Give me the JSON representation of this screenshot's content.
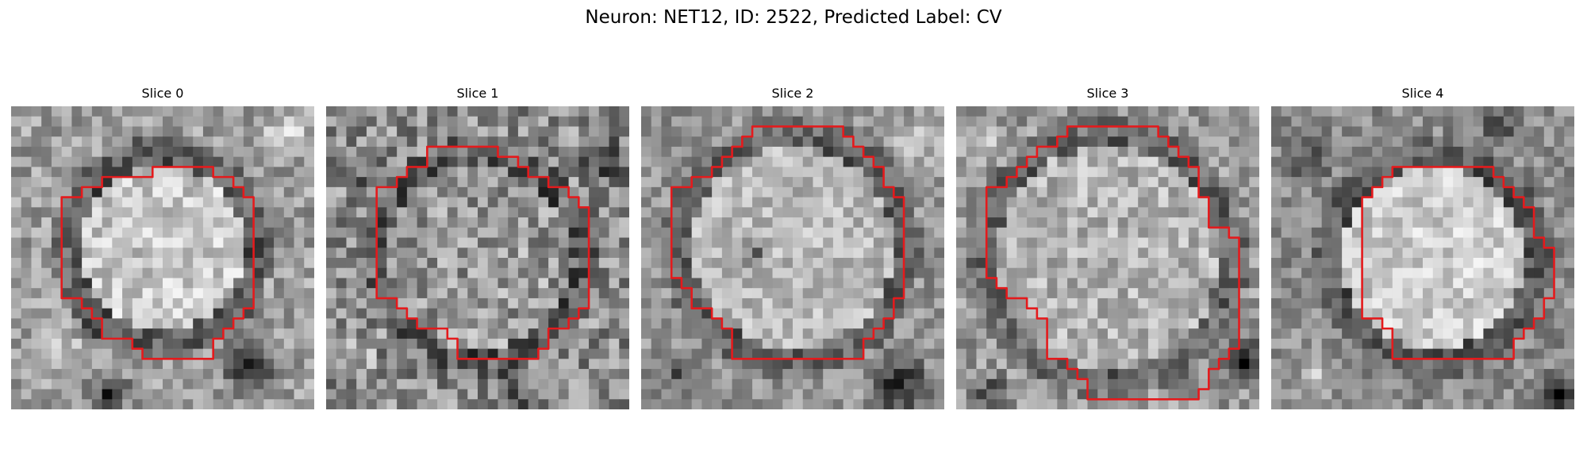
{
  "figure": {
    "title": "Neuron: NET12, ID: 2522, Predicted Label: CV",
    "contour_color": "#e41a1c"
  },
  "panels": [
    {
      "title": "Slice 0",
      "grid_size": 30,
      "image": {
        "seed": 11,
        "blob_center": [
          15,
          14
        ],
        "blob_radius": 9,
        "blob_brightness": 0.78,
        "ring_darkness": 0.3,
        "background_level": 0.62,
        "noise": 0.18,
        "dark_regions": [
          [
            8,
            21,
            2,
            0.25
          ],
          [
            23,
            25,
            4,
            0.22
          ],
          [
            9,
            28,
            3,
            0.2
          ]
        ],
        "bright_regions": [
          [
            27,
            2,
            3,
            0.88
          ],
          [
            4,
            24,
            3,
            0.82
          ]
        ]
      },
      "mask_rows": [
        [
          6,
          14,
          20
        ],
        [
          7,
          9,
          22
        ],
        [
          8,
          7,
          23
        ],
        [
          9,
          5,
          24
        ],
        [
          10,
          5,
          24
        ],
        [
          11,
          5,
          24
        ],
        [
          12,
          5,
          24
        ],
        [
          13,
          5,
          24
        ],
        [
          14,
          5,
          24
        ],
        [
          15,
          5,
          24
        ],
        [
          16,
          5,
          24
        ],
        [
          17,
          5,
          24
        ],
        [
          18,
          5,
          24
        ],
        [
          19,
          7,
          24
        ],
        [
          20,
          8,
          23
        ],
        [
          21,
          9,
          22
        ],
        [
          22,
          9,
          21
        ],
        [
          23,
          12,
          20
        ],
        [
          24,
          13,
          20
        ]
      ]
    },
    {
      "title": "Slice 1",
      "grid_size": 30,
      "image": {
        "seed": 23,
        "blob_center": [
          15,
          15
        ],
        "blob_radius": 10,
        "blob_brightness": 0.6,
        "ring_darkness": 0.32,
        "background_level": 0.55,
        "noise": 0.24,
        "dark_regions": [
          [
            27,
            5,
            3,
            0.25
          ],
          [
            4,
            6,
            3,
            0.3
          ],
          [
            18,
            28,
            3,
            0.3
          ]
        ],
        "bright_regions": [
          [
            2,
            24,
            3,
            0.78
          ]
        ]
      },
      "mask_rows": [
        [
          4,
          10,
          17
        ],
        [
          5,
          10,
          19
        ],
        [
          6,
          8,
          20
        ],
        [
          7,
          7,
          22
        ],
        [
          8,
          5,
          24
        ],
        [
          9,
          5,
          25
        ],
        [
          10,
          5,
          26
        ],
        [
          11,
          5,
          26
        ],
        [
          12,
          5,
          26
        ],
        [
          13,
          5,
          26
        ],
        [
          14,
          5,
          26
        ],
        [
          15,
          5,
          26
        ],
        [
          16,
          5,
          26
        ],
        [
          17,
          5,
          26
        ],
        [
          18,
          5,
          26
        ],
        [
          19,
          7,
          26
        ],
        [
          20,
          8,
          25
        ],
        [
          21,
          9,
          24
        ],
        [
          22,
          12,
          22
        ],
        [
          23,
          13,
          22
        ],
        [
          24,
          13,
          21
        ]
      ]
    },
    {
      "title": "Slice 2",
      "grid_size": 30,
      "image": {
        "seed": 37,
        "blob_center": [
          15,
          14
        ],
        "blob_radius": 11,
        "blob_brightness": 0.72,
        "ring_darkness": 0.34,
        "background_level": 0.58,
        "noise": 0.16,
        "dark_regions": [
          [
            11,
            14,
            2,
            0.45
          ],
          [
            25,
            27,
            4,
            0.1
          ],
          [
            3,
            26,
            3,
            0.35
          ]
        ],
        "bright_regions": [
          [
            27,
            3,
            3,
            0.82
          ]
        ]
      },
      "mask_rows": [
        [
          2,
          11,
          20
        ],
        [
          3,
          10,
          21
        ],
        [
          4,
          9,
          22
        ],
        [
          5,
          8,
          23
        ],
        [
          6,
          7,
          24
        ],
        [
          7,
          5,
          24
        ],
        [
          8,
          3,
          25
        ],
        [
          9,
          3,
          26
        ],
        [
          10,
          3,
          26
        ],
        [
          11,
          3,
          26
        ],
        [
          12,
          3,
          26
        ],
        [
          13,
          3,
          26
        ],
        [
          14,
          3,
          26
        ],
        [
          15,
          3,
          26
        ],
        [
          16,
          3,
          26
        ],
        [
          17,
          4,
          26
        ],
        [
          18,
          5,
          26
        ],
        [
          19,
          5,
          25
        ],
        [
          20,
          7,
          25
        ],
        [
          21,
          8,
          24
        ],
        [
          22,
          9,
          23
        ],
        [
          23,
          9,
          22
        ],
        [
          24,
          9,
          22
        ]
      ]
    },
    {
      "title": "Slice 3",
      "grid_size": 30,
      "image": {
        "seed": 53,
        "blob_center": [
          15,
          15
        ],
        "blob_radius": 12,
        "blob_brightness": 0.7,
        "ring_darkness": 0.34,
        "background_level": 0.6,
        "noise": 0.18,
        "dark_regions": [
          [
            28,
            25,
            3,
            0.1
          ],
          [
            3,
            28,
            3,
            0.3
          ]
        ],
        "bright_regions": [
          [
            2,
            3,
            3,
            0.85
          ]
        ]
      },
      "mask_rows": [
        [
          2,
          11,
          20
        ],
        [
          3,
          10,
          21
        ],
        [
          4,
          8,
          22
        ],
        [
          5,
          7,
          23
        ],
        [
          6,
          6,
          24
        ],
        [
          7,
          5,
          24
        ],
        [
          8,
          3,
          24
        ],
        [
          9,
          3,
          25
        ],
        [
          10,
          3,
          25
        ],
        [
          11,
          3,
          25
        ],
        [
          12,
          3,
          27
        ],
        [
          13,
          3,
          28
        ],
        [
          14,
          3,
          28
        ],
        [
          15,
          3,
          28
        ],
        [
          16,
          3,
          28
        ],
        [
          17,
          4,
          28
        ],
        [
          18,
          5,
          28
        ],
        [
          19,
          7,
          28
        ],
        [
          20,
          8,
          28
        ],
        [
          21,
          9,
          28
        ],
        [
          22,
          9,
          28
        ],
        [
          23,
          9,
          28
        ],
        [
          24,
          9,
          27
        ],
        [
          25,
          11,
          26
        ],
        [
          26,
          12,
          25
        ],
        [
          27,
          13,
          25
        ],
        [
          28,
          13,
          24
        ]
      ]
    },
    {
      "title": "Slice 4",
      "grid_size": 30,
      "image": {
        "seed": 71,
        "blob_center": [
          16,
          15
        ],
        "blob_radius": 10,
        "blob_brightness": 0.8,
        "ring_darkness": 0.3,
        "background_level": 0.55,
        "noise": 0.16,
        "dark_regions": [
          [
            28,
            28,
            3,
            0.05
          ],
          [
            3,
            5,
            3,
            0.3
          ],
          [
            22,
            1,
            3,
            0.25
          ]
        ],
        "bright_regions": [
          [
            4,
            26,
            3,
            0.78
          ]
        ]
      },
      "mask_rows": [
        [
          6,
          12,
          22
        ],
        [
          7,
          11,
          23
        ],
        [
          8,
          10,
          24
        ],
        [
          9,
          9,
          25
        ],
        [
          10,
          9,
          26
        ],
        [
          11,
          9,
          26
        ],
        [
          12,
          9,
          26
        ],
        [
          13,
          9,
          27
        ],
        [
          14,
          9,
          28
        ],
        [
          15,
          9,
          28
        ],
        [
          16,
          9,
          28
        ],
        [
          17,
          9,
          28
        ],
        [
          18,
          9,
          28
        ],
        [
          19,
          9,
          27
        ],
        [
          20,
          9,
          27
        ],
        [
          21,
          11,
          26
        ],
        [
          22,
          12,
          25
        ],
        [
          23,
          12,
          24
        ],
        [
          24,
          12,
          24
        ]
      ]
    }
  ]
}
